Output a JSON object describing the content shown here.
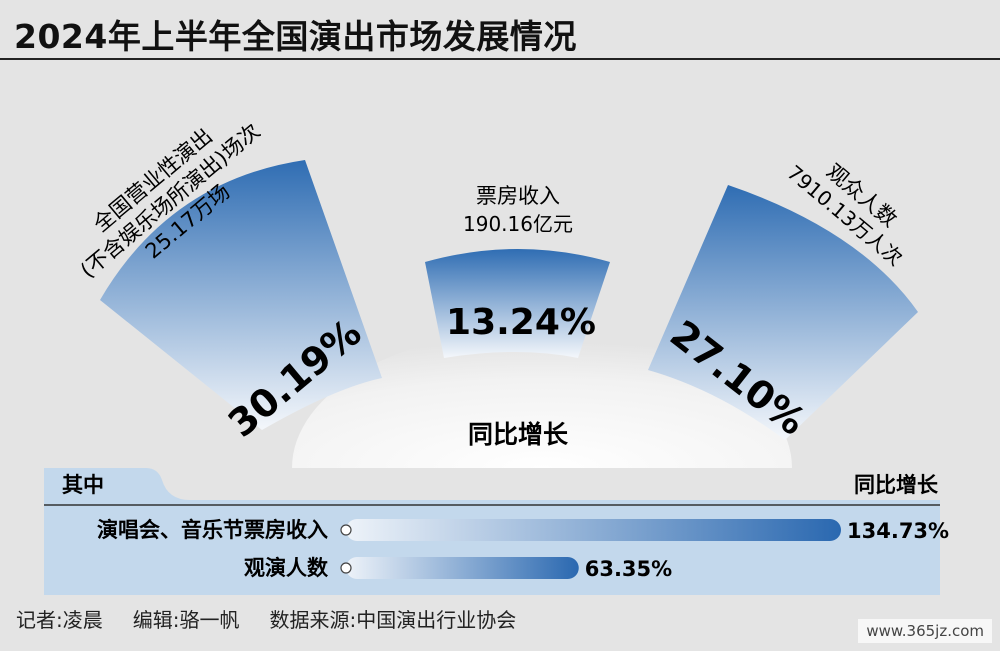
{
  "title": "2024年上半年全国演出市场发展情况",
  "center_label": "同比增长",
  "chart_data": {
    "type": "bar",
    "title": "2024年上半年全国演出市场发展情况",
    "fans": [
      {
        "label_lines": [
          "全国营业性演出",
          "(不含娱乐场所演出)场次",
          "25.17万场"
        ],
        "value": 30.19,
        "display": "30.19%"
      },
      {
        "label_lines": [
          "票房收入",
          "190.16亿元"
        ],
        "value": 13.24,
        "display": "13.24%"
      },
      {
        "label_lines": [
          "观众人数",
          "7910.13万人次"
        ],
        "value": 27.1,
        "display": "27.10%"
      }
    ],
    "sub_table": {
      "left_header": "其中",
      "right_header": "同比增长",
      "categories": [
        "演唱会、音乐节票房收入",
        "观演人数"
      ],
      "values": [
        134.73,
        63.35
      ],
      "display": [
        "134.73%",
        "63.35%"
      ]
    }
  },
  "footer": {
    "reporter": "记者:凌晨",
    "editor": "编辑:骆一帆",
    "source": "数据来源:中国演出行业协会"
  },
  "watermark": "www.365jz.com",
  "colors": {
    "bar_dark": "#2f6db3",
    "bar_light": "#d6e4f3",
    "table_bg": "#c3d8ec"
  }
}
